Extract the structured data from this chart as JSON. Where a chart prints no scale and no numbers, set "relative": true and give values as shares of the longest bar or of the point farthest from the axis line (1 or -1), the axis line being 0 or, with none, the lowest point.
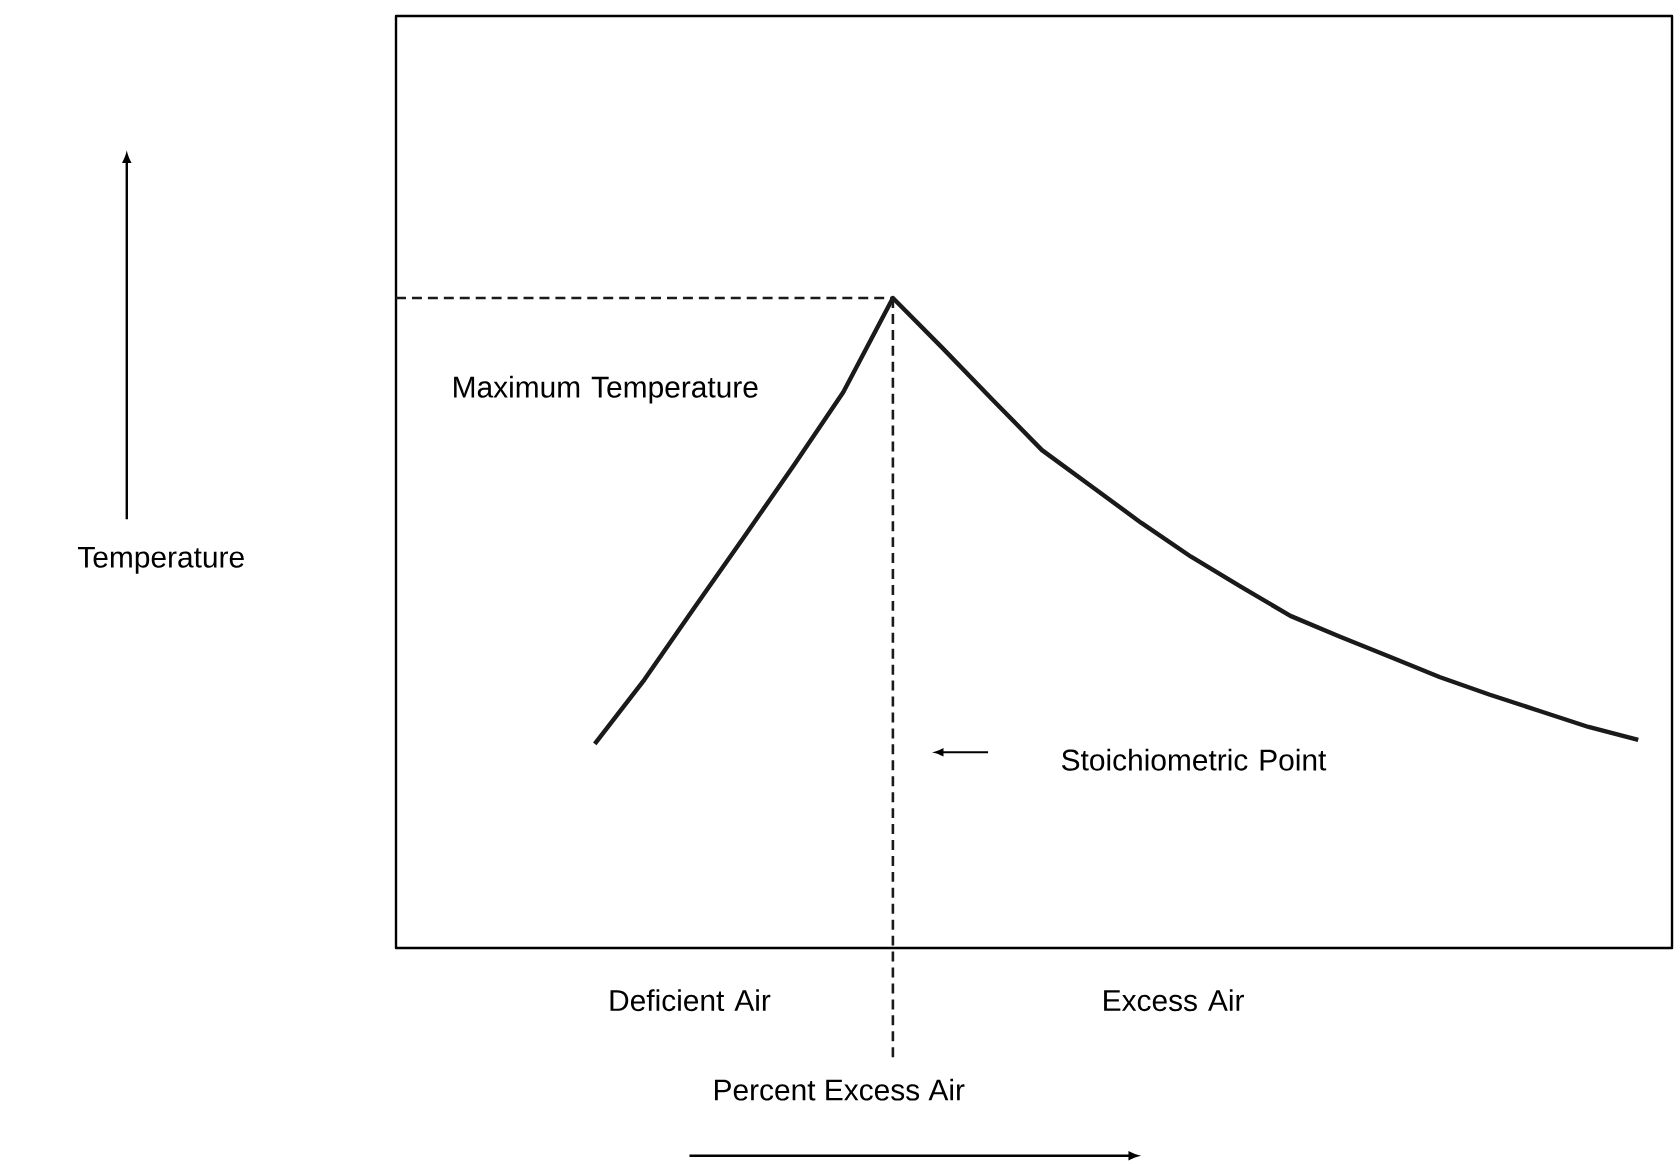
{
  "chart_data": {
    "type": "line",
    "relative": true,
    "marker": "none",
    "line_style": "solid",
    "xlabel": "Percent Excess Air",
    "categories": [
      null,
      null,
      null,
      null,
      null,
      null,
      null,
      null,
      null,
      null,
      null,
      null,
      null,
      null,
      null,
      null,
      null,
      null,
      null,
      null,
      null,
      null,
      null,
      null,
      null,
      null
    ],
    "series": [
      {
        "color": "#1a1a1a",
        "values": [
          null,
          null,
          null,
          null,
          0.314,
          0.413,
          0.523,
          0.632,
          0.742,
          0.855,
          1,
          0.923,
          0.844,
          0.766,
          0.71,
          0.654,
          0.602,
          0.556,
          0.511,
          0.479,
          0.448,
          0.417,
          0.39,
          0.365,
          0.34,
          0.32
        ]
      }
    ],
    "ref_lines": [
      {
        "axis": "y",
        "value": 1,
        "line_style": "dashed",
        "color": "#1a1a1a"
      }
    ],
    "annotations": [
      "Maximum Temperature",
      "Stoichiometric Point",
      "Deficient Air",
      "Excess Air",
      "Temperature"
    ]
  }
}
